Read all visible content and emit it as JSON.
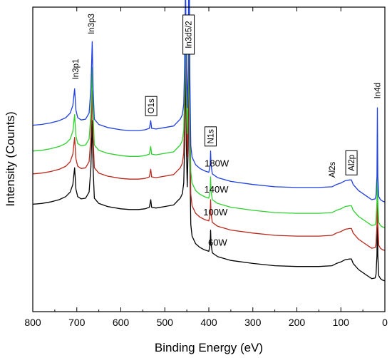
{
  "chart_data": {
    "type": "line",
    "title": "",
    "xlabel": "Binding Energy (eV)",
    "ylabel": "Intensity (Counts)",
    "xlim": [
      800,
      0
    ],
    "x_reversed": true,
    "xticks": [
      800,
      700,
      600,
      500,
      400,
      300,
      200,
      100,
      0
    ],
    "y_ticks_shown": false,
    "grid": false,
    "legend": "none",
    "series": [
      {
        "name": "60W",
        "color": "#000000",
        "label_x": 380,
        "offset": 0,
        "points": [
          [
            800,
            102
          ],
          [
            780,
            103
          ],
          [
            760,
            105
          ],
          [
            740,
            108
          ],
          [
            725,
            112
          ],
          [
            715,
            118
          ],
          [
            709,
            128
          ],
          [
            705,
            150
          ],
          [
            702,
            122
          ],
          [
            698,
            112
          ],
          [
            690,
            109
          ],
          [
            680,
            110
          ],
          [
            672,
            118
          ],
          [
            668,
            150
          ],
          [
            665,
            212
          ],
          [
            663,
            150
          ],
          [
            660,
            110
          ],
          [
            650,
            103
          ],
          [
            630,
            99
          ],
          [
            600,
            96
          ],
          [
            580,
            95
          ],
          [
            560,
            95
          ],
          [
            545,
            96
          ],
          [
            535,
            98
          ],
          [
            532,
            108
          ],
          [
            530,
            98
          ],
          [
            520,
            97
          ],
          [
            500,
            99
          ],
          [
            480,
            101
          ],
          [
            470,
            107
          ],
          [
            465,
            110
          ],
          [
            460,
            116
          ],
          [
            457,
            130
          ],
          [
            455,
            180
          ],
          [
            453,
            290
          ],
          [
            451,
            180
          ],
          [
            449,
            125
          ],
          [
            447,
            175
          ],
          [
            445,
            365
          ],
          [
            443,
            165
          ],
          [
            441,
            75
          ],
          [
            438,
            60
          ],
          [
            430,
            50
          ],
          [
            420,
            45
          ],
          [
            410,
            42
          ],
          [
            400,
            40
          ],
          [
            397,
            50
          ],
          [
            396,
            68
          ],
          [
            395,
            50
          ],
          [
            392,
            38
          ],
          [
            380,
            33
          ],
          [
            350,
            28
          ],
          [
            300,
            24
          ],
          [
            250,
            21
          ],
          [
            200,
            20
          ],
          [
            150,
            20
          ],
          [
            120,
            21
          ],
          [
            110,
            24
          ],
          [
            100,
            26
          ],
          [
            90,
            29
          ],
          [
            80,
            30
          ],
          [
            76,
            30
          ],
          [
            72,
            24
          ],
          [
            60,
            16
          ],
          [
            40,
            8
          ],
          [
            30,
            4
          ],
          [
            22,
            5
          ],
          [
            20,
            10
          ],
          [
            18,
            35
          ],
          [
            17,
            125
          ],
          [
            16,
            35
          ],
          [
            14,
            8
          ],
          [
            10,
            4
          ],
          [
            5,
            2
          ],
          [
            0,
            1
          ]
        ]
      },
      {
        "name": "100W",
        "color": "#b8281c",
        "label_x": 385,
        "offset": 40,
        "points": [
          [
            800,
            102
          ],
          [
            780,
            103
          ],
          [
            760,
            105
          ],
          [
            740,
            108
          ],
          [
            725,
            112
          ],
          [
            715,
            118
          ],
          [
            709,
            128
          ],
          [
            705,
            150
          ],
          [
            702,
            122
          ],
          [
            698,
            112
          ],
          [
            690,
            109
          ],
          [
            680,
            110
          ],
          [
            672,
            118
          ],
          [
            668,
            150
          ],
          [
            665,
            212
          ],
          [
            663,
            150
          ],
          [
            660,
            110
          ],
          [
            650,
            103
          ],
          [
            630,
            99
          ],
          [
            600,
            96
          ],
          [
            580,
            95
          ],
          [
            560,
            95
          ],
          [
            545,
            96
          ],
          [
            535,
            98
          ],
          [
            532,
            108
          ],
          [
            530,
            98
          ],
          [
            520,
            97
          ],
          [
            500,
            99
          ],
          [
            480,
            101
          ],
          [
            470,
            107
          ],
          [
            465,
            110
          ],
          [
            460,
            116
          ],
          [
            457,
            130
          ],
          [
            455,
            180
          ],
          [
            453,
            290
          ],
          [
            451,
            180
          ],
          [
            449,
            125
          ],
          [
            447,
            175
          ],
          [
            445,
            365
          ],
          [
            443,
            165
          ],
          [
            441,
            75
          ],
          [
            438,
            60
          ],
          [
            430,
            50
          ],
          [
            420,
            45
          ],
          [
            410,
            42
          ],
          [
            400,
            40
          ],
          [
            397,
            50
          ],
          [
            396,
            68
          ],
          [
            395,
            50
          ],
          [
            392,
            38
          ],
          [
            380,
            33
          ],
          [
            350,
            28
          ],
          [
            300,
            24
          ],
          [
            250,
            21
          ],
          [
            200,
            20
          ],
          [
            150,
            20
          ],
          [
            120,
            21
          ],
          [
            110,
            24
          ],
          [
            100,
            26
          ],
          [
            90,
            29
          ],
          [
            80,
            30
          ],
          [
            76,
            30
          ],
          [
            72,
            24
          ],
          [
            60,
            16
          ],
          [
            40,
            8
          ],
          [
            30,
            4
          ],
          [
            22,
            5
          ],
          [
            20,
            10
          ],
          [
            18,
            35
          ],
          [
            17,
            125
          ],
          [
            16,
            35
          ],
          [
            14,
            8
          ],
          [
            10,
            4
          ],
          [
            5,
            2
          ],
          [
            0,
            1
          ]
        ]
      },
      {
        "name": "140W",
        "color": "#2ed02e",
        "label_x": 383,
        "offset": 70,
        "points": [
          [
            800,
            102
          ],
          [
            780,
            103
          ],
          [
            760,
            105
          ],
          [
            740,
            108
          ],
          [
            725,
            112
          ],
          [
            715,
            118
          ],
          [
            709,
            128
          ],
          [
            705,
            150
          ],
          [
            702,
            122
          ],
          [
            698,
            112
          ],
          [
            690,
            109
          ],
          [
            680,
            110
          ],
          [
            672,
            118
          ],
          [
            668,
            150
          ],
          [
            665,
            212
          ],
          [
            663,
            150
          ],
          [
            660,
            110
          ],
          [
            650,
            103
          ],
          [
            630,
            99
          ],
          [
            600,
            96
          ],
          [
            580,
            95
          ],
          [
            560,
            95
          ],
          [
            545,
            96
          ],
          [
            535,
            98
          ],
          [
            532,
            108
          ],
          [
            530,
            98
          ],
          [
            520,
            97
          ],
          [
            500,
            99
          ],
          [
            480,
            101
          ],
          [
            470,
            107
          ],
          [
            465,
            110
          ],
          [
            460,
            116
          ],
          [
            457,
            130
          ],
          [
            455,
            180
          ],
          [
            453,
            290
          ],
          [
            451,
            180
          ],
          [
            449,
            125
          ],
          [
            447,
            175
          ],
          [
            445,
            365
          ],
          [
            443,
            165
          ],
          [
            441,
            75
          ],
          [
            438,
            60
          ],
          [
            430,
            50
          ],
          [
            420,
            45
          ],
          [
            410,
            42
          ],
          [
            400,
            40
          ],
          [
            397,
            50
          ],
          [
            396,
            68
          ],
          [
            395,
            50
          ],
          [
            392,
            38
          ],
          [
            380,
            33
          ],
          [
            350,
            28
          ],
          [
            300,
            24
          ],
          [
            250,
            21
          ],
          [
            200,
            20
          ],
          [
            150,
            20
          ],
          [
            120,
            21
          ],
          [
            110,
            24
          ],
          [
            100,
            26
          ],
          [
            90,
            29
          ],
          [
            80,
            30
          ],
          [
            76,
            30
          ],
          [
            72,
            24
          ],
          [
            60,
            16
          ],
          [
            40,
            8
          ],
          [
            30,
            4
          ],
          [
            22,
            5
          ],
          [
            20,
            10
          ],
          [
            18,
            35
          ],
          [
            17,
            125
          ],
          [
            16,
            35
          ],
          [
            14,
            8
          ],
          [
            10,
            4
          ],
          [
            5,
            2
          ],
          [
            0,
            1
          ]
        ]
      },
      {
        "name": "180W",
        "color": "#1f3fe0",
        "label_x": 382,
        "offset": 104,
        "points": [
          [
            800,
            102
          ],
          [
            780,
            103
          ],
          [
            760,
            105
          ],
          [
            740,
            108
          ],
          [
            725,
            112
          ],
          [
            715,
            118
          ],
          [
            709,
            128
          ],
          [
            705,
            150
          ],
          [
            702,
            122
          ],
          [
            698,
            112
          ],
          [
            690,
            109
          ],
          [
            680,
            110
          ],
          [
            672,
            118
          ],
          [
            668,
            150
          ],
          [
            665,
            212
          ],
          [
            663,
            150
          ],
          [
            660,
            110
          ],
          [
            650,
            103
          ],
          [
            630,
            99
          ],
          [
            600,
            96
          ],
          [
            580,
            95
          ],
          [
            560,
            95
          ],
          [
            545,
            96
          ],
          [
            535,
            98
          ],
          [
            532,
            108
          ],
          [
            530,
            98
          ],
          [
            520,
            97
          ],
          [
            500,
            99
          ],
          [
            480,
            101
          ],
          [
            470,
            107
          ],
          [
            465,
            110
          ],
          [
            460,
            116
          ],
          [
            457,
            130
          ],
          [
            455,
            180
          ],
          [
            453,
            290
          ],
          [
            451,
            180
          ],
          [
            449,
            125
          ],
          [
            447,
            175
          ],
          [
            445,
            365
          ],
          [
            443,
            165
          ],
          [
            441,
            75
          ],
          [
            438,
            60
          ],
          [
            430,
            50
          ],
          [
            420,
            45
          ],
          [
            410,
            42
          ],
          [
            400,
            40
          ],
          [
            397,
            50
          ],
          [
            396,
            68
          ],
          [
            395,
            50
          ],
          [
            392,
            38
          ],
          [
            380,
            33
          ],
          [
            350,
            28
          ],
          [
            300,
            24
          ],
          [
            250,
            21
          ],
          [
            200,
            20
          ],
          [
            150,
            20
          ],
          [
            120,
            21
          ],
          [
            110,
            24
          ],
          [
            100,
            26
          ],
          [
            90,
            29
          ],
          [
            80,
            30
          ],
          [
            76,
            30
          ],
          [
            72,
            24
          ],
          [
            60,
            16
          ],
          [
            40,
            8
          ],
          [
            30,
            4
          ],
          [
            22,
            5
          ],
          [
            20,
            10
          ],
          [
            18,
            35
          ],
          [
            17,
            125
          ],
          [
            16,
            35
          ],
          [
            14,
            8
          ],
          [
            10,
            4
          ],
          [
            5,
            2
          ],
          [
            0,
            1
          ]
        ]
      }
    ],
    "annotations": [
      {
        "text": "In3p1",
        "x": 703,
        "boxed": false
      },
      {
        "text": "In3p3",
        "x": 667,
        "boxed": false
      },
      {
        "text": "O1s",
        "x": 531,
        "boxed": true
      },
      {
        "text": "In3d5/2",
        "x": 446,
        "boxed": true
      },
      {
        "text": "N1s",
        "x": 396,
        "boxed": true
      },
      {
        "text": "Al2s",
        "x": 120,
        "boxed": false
      },
      {
        "text": "Al2p",
        "x": 76,
        "boxed": true
      },
      {
        "text": "In4d",
        "x": 17,
        "boxed": false
      }
    ]
  }
}
